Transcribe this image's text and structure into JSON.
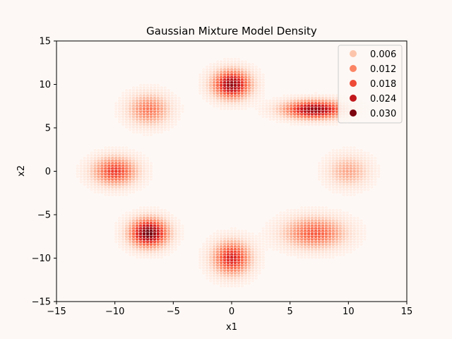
{
  "chart_data": {
    "type": "scatter",
    "title": "Gaussian Mixture Model Density",
    "xlabel": "x1",
    "ylabel": "x2",
    "xlim": [
      -15,
      15
    ],
    "ylim": [
      -15,
      15
    ],
    "xticks": [
      "−15",
      "−10",
      "−5",
      "0",
      "5",
      "10",
      "15"
    ],
    "yticks": [
      "−15",
      "−10",
      "−5",
      "0",
      "5",
      "10",
      "15"
    ],
    "xtick_values": [
      -15,
      -10,
      -5,
      0,
      5,
      10,
      15
    ],
    "ytick_values": [
      -15,
      -10,
      -5,
      0,
      5,
      10,
      15
    ],
    "grid": false,
    "legend_placement": "top-right",
    "legend": {
      "title": "",
      "entries": [
        {
          "label": "0.006",
          "value": 0.006,
          "color": "#fcc5ab"
        },
        {
          "label": "0.012",
          "value": 0.012,
          "color": "#fb8464"
        },
        {
          "label": "0.018",
          "value": 0.018,
          "color": "#ee4a36"
        },
        {
          "label": "0.024",
          "value": 0.024,
          "color": "#c1181c"
        },
        {
          "label": "0.030",
          "value": 0.03,
          "color": "#7c0510"
        }
      ]
    },
    "grid_step": 0.3,
    "components": [
      {
        "center": [
          0,
          10
        ],
        "sx": 1.1,
        "sy": 1.1,
        "peak": 0.032
      },
      {
        "center": [
          7.1,
          7.1
        ],
        "sx": 1.8,
        "sy": 0.7,
        "peak": 0.032
      },
      {
        "center": [
          10,
          0
        ],
        "sx": 1.2,
        "sy": 1.2,
        "peak": 0.011
      },
      {
        "center": [
          7.1,
          -7.1
        ],
        "sx": 1.8,
        "sy": 1.2,
        "peak": 0.019
      },
      {
        "center": [
          0,
          -10
        ],
        "sx": 1.1,
        "sy": 1.3,
        "peak": 0.025
      },
      {
        "center": [
          -7.1,
          -7.1
        ],
        "sx": 1.1,
        "sy": 1.1,
        "peak": 0.035
      },
      {
        "center": [
          -10,
          0
        ],
        "sx": 1.3,
        "sy": 1.1,
        "peak": 0.022
      },
      {
        "center": [
          -7.1,
          7.1
        ],
        "sx": 1.2,
        "sy": 1.2,
        "peak": 0.016
      }
    ],
    "density_cutoff": 0.0008,
    "colors": {
      "low": "#fff5f0",
      "high": "#67000d",
      "point_stroke": "#ffffff"
    }
  }
}
